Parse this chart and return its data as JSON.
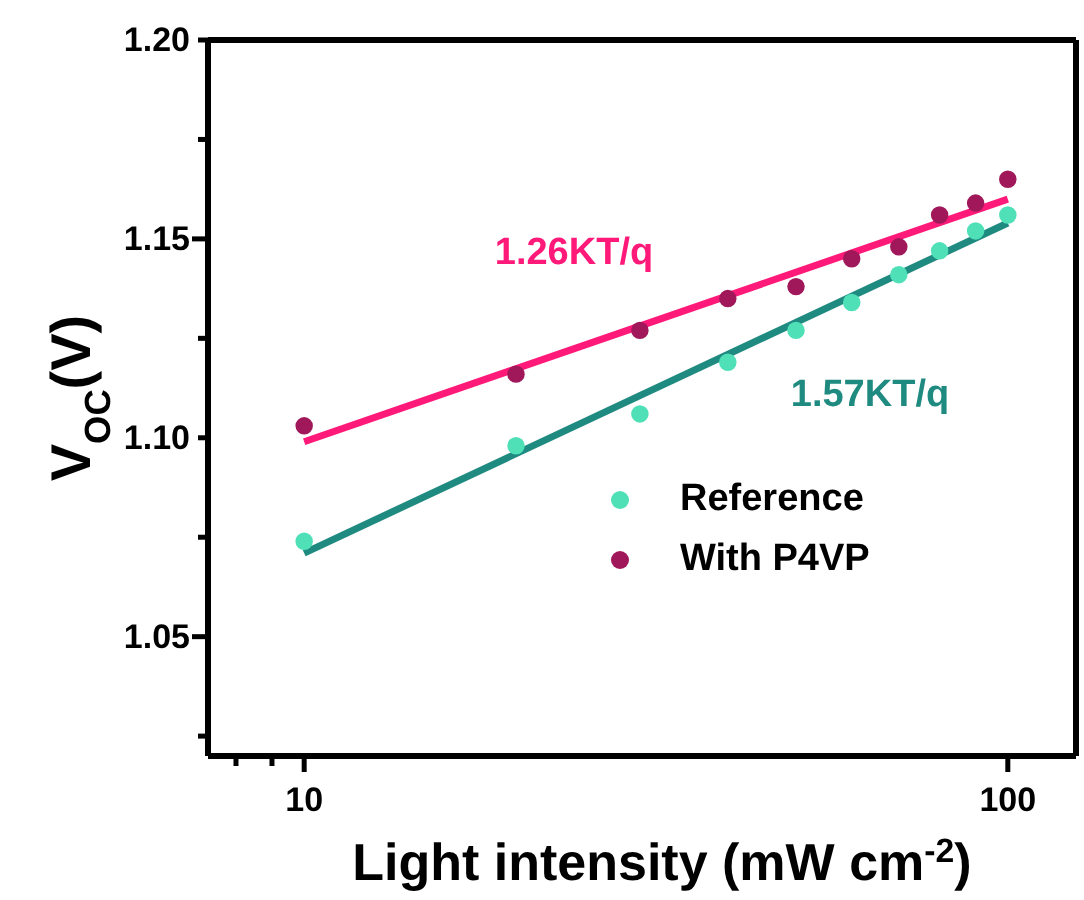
{
  "chart_data": {
    "type": "scatter",
    "xlabel": "Light intensity (mW cm$^{-2}$)",
    "ylabel": "V$_{OC}$(V)",
    "log": "x",
    "xlim": [
      7.3,
      125
    ],
    "ylim": [
      1.02,
      1.2
    ],
    "xticks": [
      {
        "value": 8,
        "label": null
      },
      {
        "value": 9,
        "label": null
      },
      10,
      100
    ],
    "yticks": [
      {
        "value": 1.025,
        "label": null
      },
      1.05,
      {
        "value": 1.075,
        "label": null
      },
      {
        "value": 1.1,
        "label": "1.10"
      },
      {
        "value": 1.125,
        "label": null
      },
      1.15,
      {
        "value": 1.175,
        "label": null
      },
      {
        "value": 1.2,
        "label": "1.20"
      }
    ],
    "grid": false,
    "legend": "right",
    "marker": "circle",
    "series": [
      {
        "name": "Reference",
        "color": "#4fe0b8",
        "x": [
          10,
          20,
          30,
          40,
          50,
          60,
          70,
          80,
          90,
          100
        ],
        "values": [
          1.074,
          1.098,
          1.106,
          1.119,
          1.127,
          1.134,
          1.141,
          1.147,
          1.152,
          1.156
        ]
      },
      {
        "name": "With P4VP",
        "color": "#a0185a",
        "x": [
          10,
          20,
          30,
          40,
          50,
          60,
          70,
          80,
          90,
          100
        ],
        "values": [
          1.103,
          1.116,
          1.127,
          1.135,
          1.138,
          1.145,
          1.148,
          1.156,
          1.159,
          1.165
        ]
      },
      {
        "type": "line",
        "color": "#ff1a7a",
        "x": [
          10,
          100
        ],
        "values": [
          1.099,
          1.16
        ],
        "marker": "none",
        "line_style": "solid"
      },
      {
        "type": "line",
        "color": "#1f8a80",
        "x": [
          10,
          100
        ],
        "values": [
          1.071,
          1.154
        ],
        "marker": "none",
        "line_style": "solid"
      }
    ],
    "annotations": [
      "1.26KT/q",
      "1.57KT/q"
    ]
  }
}
